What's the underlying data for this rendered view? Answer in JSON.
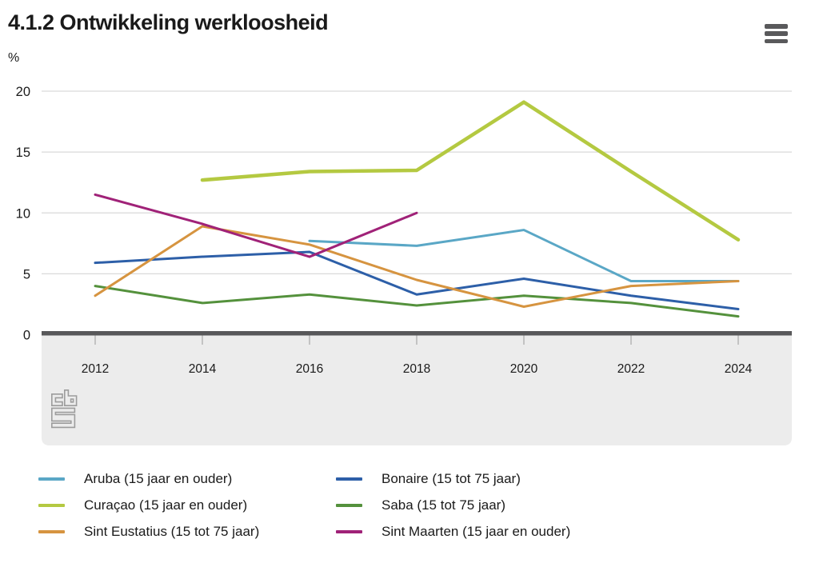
{
  "header": {
    "title": "4.1.2 Ontwikkeling werkloosheid",
    "menu_icon": "hamburger-icon"
  },
  "chart_data": {
    "type": "line",
    "title": "4.1.2 Ontwikkeling werkloosheid",
    "unit_label": "%",
    "x": [
      2012,
      2014,
      2016,
      2018,
      2020,
      2022,
      2024
    ],
    "series": [
      {
        "id": "aruba",
        "name": "Aruba (15 jaar en ouder)",
        "color": "#5aa7c6",
        "width": 3,
        "values": [
          null,
          null,
          7.7,
          7.3,
          8.6,
          4.4,
          4.4
        ]
      },
      {
        "id": "bonaire",
        "name": "Bonaire (15 tot 75 jaar)",
        "color": "#2d5fa8",
        "width": 3,
        "values": [
          5.9,
          6.4,
          6.8,
          3.3,
          4.6,
          3.2,
          2.1
        ]
      },
      {
        "id": "curacao",
        "name": "Curaçao (15 jaar en ouder)",
        "color": "#b4c941",
        "width": 4.5,
        "values": [
          null,
          12.7,
          13.4,
          13.5,
          19.1,
          13.4,
          7.8
        ]
      },
      {
        "id": "saba",
        "name": "Saba (15 tot 75 jaar)",
        "color": "#54913c",
        "width": 3,
        "values": [
          4.0,
          2.6,
          3.3,
          2.4,
          3.2,
          2.6,
          1.5
        ]
      },
      {
        "id": "sint-eustatius",
        "name": "Sint Eustatius (15 tot 75 jaar)",
        "color": "#d69440",
        "width": 3,
        "values": [
          3.2,
          8.9,
          7.4,
          4.5,
          2.3,
          4.0,
          4.4
        ]
      },
      {
        "id": "sint-maarten",
        "name": "Sint Maarten (15 jaar en ouder)",
        "color": "#a02278",
        "width": 3,
        "values": [
          11.5,
          9.1,
          6.4,
          10.0,
          null,
          null,
          null
        ]
      }
    ],
    "ylim": [
      0,
      20
    ],
    "yticks": [
      0,
      5,
      10,
      15,
      20
    ],
    "grid": true,
    "legend_position": "bottom"
  },
  "footer": {
    "logo": "cbs-logo"
  },
  "colors": {
    "text": "#1a1a1a",
    "axis": "#58585a",
    "grid": "#d9d9d9",
    "tick": "#9a9a9a",
    "footer_bg": "#ececec",
    "logo": "#9c9c9c"
  }
}
